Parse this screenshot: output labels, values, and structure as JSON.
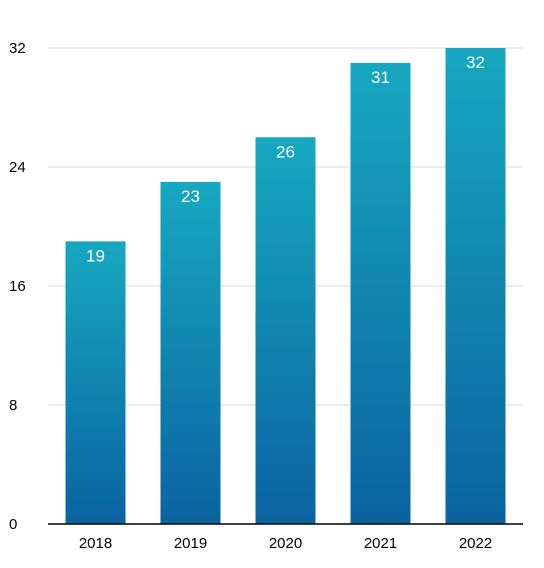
{
  "chart_data": {
    "type": "bar",
    "categories": [
      "2018",
      "2019",
      "2020",
      "2021",
      "2022"
    ],
    "values": [
      19,
      23,
      26,
      31,
      32
    ],
    "value_labels": [
      "19",
      "23",
      "26",
      "31",
      "32"
    ],
    "ylim": [
      0,
      32
    ],
    "yticks": [
      0,
      8,
      16,
      24,
      32
    ],
    "ytick_labels": [
      "0",
      "8",
      "16",
      "24",
      "32"
    ],
    "grid": true,
    "title": "",
    "xlabel": "",
    "ylabel": "",
    "colors": {
      "bar_top": "#17a8c0",
      "bar_bottom": "#0a63a0",
      "grid": "#d9d9d9",
      "axis": "#000000",
      "value_label": "#ffffff",
      "tick_label": "#000000"
    }
  }
}
